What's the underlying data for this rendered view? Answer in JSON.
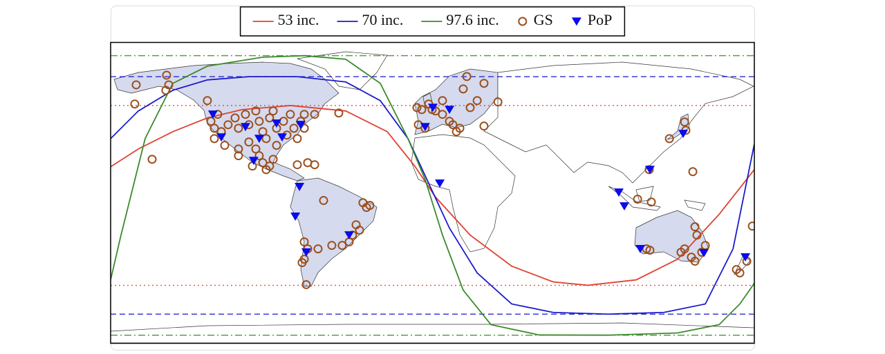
{
  "chart_data": {
    "type": "map",
    "legend": "top",
    "xlim": [
      -180,
      180
    ],
    "ylim": [
      -87,
      90
    ],
    "series": [
      {
        "name": "53 inc.",
        "type": "line",
        "color": "#e0402f",
        "bound_style": "dotted",
        "bounds": [
          -53,
          53
        ],
        "x": [
          -180,
          -164.5,
          -145.2,
          -125.9,
          -106.5,
          -79.5,
          -48.5,
          -25.3,
          -9.9,
          1.7,
          21.1,
          44.3,
          67.5,
          86.8,
          113.9,
          137.1,
          160.3,
          180
        ],
        "values": [
          16.9,
          27.4,
          37.6,
          45.7,
          50.6,
          53.0,
          49.8,
          37.6,
          17.3,
          -1.0,
          -23.4,
          -41.7,
          -51.0,
          -53.0,
          -49.8,
          -37.6,
          -11.2,
          15.2
        ]
      },
      {
        "name": "70 inc.",
        "type": "line",
        "color": "#1a1acc",
        "bound_style": "dashed",
        "bounds": [
          -70,
          70
        ],
        "x": [
          -180,
          -164.5,
          -145.2,
          -125.9,
          -102.7,
          -75.6,
          -48.5,
          -29.2,
          -13.7,
          -2.1,
          9.5,
          25.0,
          44.3,
          67.5,
          98.4,
          129.4,
          152.6,
          168.1,
          180
        ],
        "values": [
          33.5,
          49.8,
          62.0,
          68.1,
          70.0,
          70.0,
          66.9,
          55.9,
          33.5,
          7.1,
          -19.3,
          -45.7,
          -64.0,
          -69.0,
          -70.0,
          -69.0,
          -64.0,
          -31.5,
          30.3
        ]
      },
      {
        "name": "97.6 inc.",
        "type": "line",
        "color": "#3a8a2a",
        "bound_style": "dashdot",
        "bounds": [
          -82.4,
          82.4
        ],
        "x": [
          -180,
          -174.2,
          -168.4,
          -160.7,
          -145.2,
          -125.9,
          -95.0,
          -71.8,
          -48.5,
          -29.2,
          -13.7,
          -4.0,
          5.6,
          17.2,
          32.7,
          59.8,
          98.4,
          137.1,
          160.3,
          171.9,
          180
        ],
        "values": [
          -49.8,
          -23.4,
          1.0,
          33.5,
          66.1,
          76.2,
          81.5,
          82.4,
          80.3,
          66.1,
          33.5,
          9.1,
          -23.4,
          -55.9,
          -76.2,
          -82.3,
          -82.4,
          -81.1,
          -76.2,
          -64.0,
          -51.8
        ]
      },
      {
        "name": "GS",
        "type": "scatter",
        "marker": "circle",
        "color": "#9b4f1c",
        "x": [
          -165.7,
          -166.5,
          -148.7,
          -147.5,
          -149.1,
          -156.8,
          -123.9,
          -122.0,
          -120.1,
          -118.1,
          -114.3,
          -110.4,
          -108.5,
          -104.6,
          -102.7,
          -98.8,
          -96.9,
          -94.9,
          -93.0,
          -91.1,
          -89.1,
          -87.2,
          -83.3,
          -81.4,
          -79.5,
          -77.5,
          -75.6,
          -73.7,
          -71.7,
          -122.0,
          -116.2,
          -108.5,
          -102.7,
          -98.8,
          -96.9,
          -94.9,
          -91.1,
          -87.2,
          -71.7,
          -65.9,
          -52.4,
          -125.9,
          -108.5,
          -100.7,
          -93.0,
          -75.6,
          -69.8,
          -65.9,
          -89.1,
          -60.9,
          -38.9,
          -36.9,
          -35.0,
          -42.7,
          -40.8,
          -44.7,
          -46.6,
          -50.5,
          -56.3,
          -64.0,
          -71.7,
          -69.8,
          -71.7,
          -72.9,
          -70.6,
          -8.7,
          -7.9,
          -6.0,
          -4.1,
          -2.1,
          -0.2,
          1.7,
          5.6,
          9.5,
          11.4,
          13.4,
          15.3,
          21.1,
          25.0,
          28.8,
          19.2,
          5.6,
          17.2,
          28.8,
          36.6,
          141.0,
          141.7,
          132.5,
          145.6,
          114.7,
          122.4,
          121.2,
          146.8,
          147.9,
          119.7,
          121.6,
          141.0,
          144.8,
          146.8,
          150.6,
          152.6,
          139.0,
          170.0,
          171.9,
          175.8,
          178.9
        ],
        "values": [
          65.2,
          53.9,
          70.9,
          65.2,
          62.0,
          21.3,
          43.7,
          39.6,
          47.8,
          37.6,
          41.7,
          45.7,
          39.6,
          47.8,
          41.7,
          49.8,
          43.7,
          37.6,
          33.5,
          45.7,
          49.8,
          39.6,
          43.7,
          35.6,
          47.8,
          39.6,
          33.5,
          43.7,
          47.8,
          33.5,
          29.5,
          27.4,
          31.5,
          27.4,
          23.4,
          19.3,
          17.3,
          29.5,
          39.6,
          47.8,
          48.6,
          55.9,
          23.4,
          17.3,
          15.2,
          18.1,
          19.3,
          18.1,
          21.3,
          -3.0,
          -4.3,
          -7.1,
          -5.9,
          -17.3,
          -20.5,
          -23.4,
          -27.4,
          -29.5,
          -29.5,
          -31.5,
          -27.4,
          -31.5,
          -37.6,
          -39.6,
          -52.6,
          51.8,
          41.7,
          50.6,
          39.6,
          53.9,
          50.6,
          49.8,
          47.8,
          43.7,
          41.7,
          37.6,
          39.6,
          51.8,
          55.9,
          66.1,
          70.1,
          55.9,
          62.8,
          40.9,
          55.1,
          43.3,
          38.4,
          33.5,
          14.0,
          -2.2,
          -3.9,
          15.2,
          -18.5,
          -23.4,
          -31.5,
          -32.3,
          -31.5,
          -36.4,
          -38.8,
          -33.5,
          -29.5,
          -33.5,
          -43.7,
          -45.7,
          -38.8,
          -18.1
        ]
      },
      {
        "name": "PoP",
        "type": "scatter",
        "marker": "triangle-down",
        "color": "#0a0aee",
        "x": [
          -122.8,
          -104.6,
          -118.1,
          -96.9,
          -87.2,
          -84.1,
          -73.7,
          -100.0,
          -74.4,
          -76.7,
          -46.6,
          -70.6,
          -4.1,
          0.2,
          9.5,
          4.1,
          104.2,
          107.3,
          121.6,
          140.2,
          116.2,
          151.8,
          175.0
        ],
        "values": [
          47.8,
          40.4,
          34.3,
          33.5,
          42.5,
          34.3,
          41.7,
          20.5,
          5.1,
          -12.4,
          -23.4,
          -33.5,
          40.4,
          51.8,
          50.6,
          7.1,
          1.8,
          -6.3,
          15.2,
          36.4,
          -31.5,
          -33.9,
          -36.4
        ]
      }
    ]
  }
}
